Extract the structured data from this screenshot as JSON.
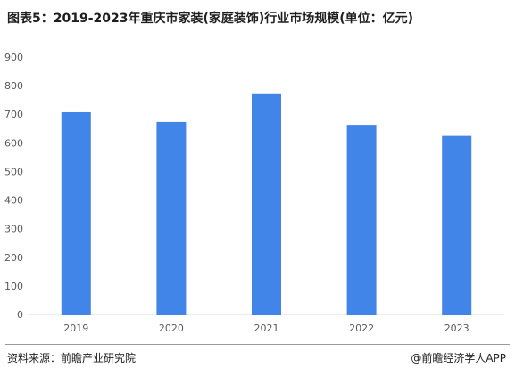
{
  "title": "图表5：2019-2023年重庆市家装(家庭装饰)行业市场规模(单位：亿元)",
  "source": "资料来源：前瞻产业研究院",
  "brand": "@前瞻经济学人APP",
  "colors": {
    "bar": "#4285E8",
    "axis": "#D9D9D9",
    "text": "#595959"
  },
  "chart_data": {
    "type": "bar",
    "title": "图表5：2019-2023年重庆市家装(家庭装饰)行业市场规模(单位：亿元)",
    "categories": [
      "2019",
      "2020",
      "2021",
      "2022",
      "2023"
    ],
    "values": [
      707,
      673,
      773,
      663,
      624
    ],
    "ylim": [
      0,
      900
    ],
    "yticks": [
      0,
      100,
      200,
      300,
      400,
      500,
      600,
      700,
      800,
      900
    ],
    "xlabel": "",
    "ylabel": "",
    "grid": false,
    "legend": "none"
  }
}
